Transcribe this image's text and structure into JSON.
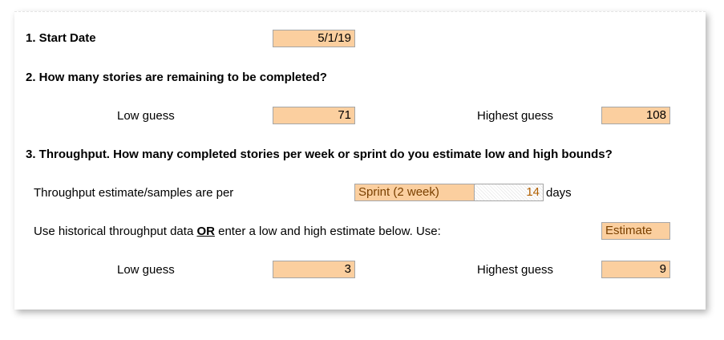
{
  "q1": {
    "label": "1. Start Date",
    "start_date": "5/1/19"
  },
  "q2": {
    "label": "2. How many stories are remaining to be completed?",
    "low_label": "Low guess",
    "low_value": "71",
    "high_label": "Highest guess",
    "high_value": "108"
  },
  "q3": {
    "label": "3. Throughput. How many completed stories per week or sprint do you estimate low and high bounds?",
    "per_label": "Throughput estimate/samples are per",
    "per_value": "Sprint (2 week)",
    "days_value": "14",
    "days_unit": "days",
    "hist_text_1": "Use historical throughput data ",
    "hist_or": "OR",
    "hist_text_2": " enter a low and high estimate below. Use:",
    "use_value": "Estimate",
    "low_label": "Low guess",
    "low_value": "3",
    "high_label": "Highest guess",
    "high_value": "9"
  },
  "colors": {
    "input_fill": "#fbcf9f",
    "border": "#a6a6a6"
  }
}
